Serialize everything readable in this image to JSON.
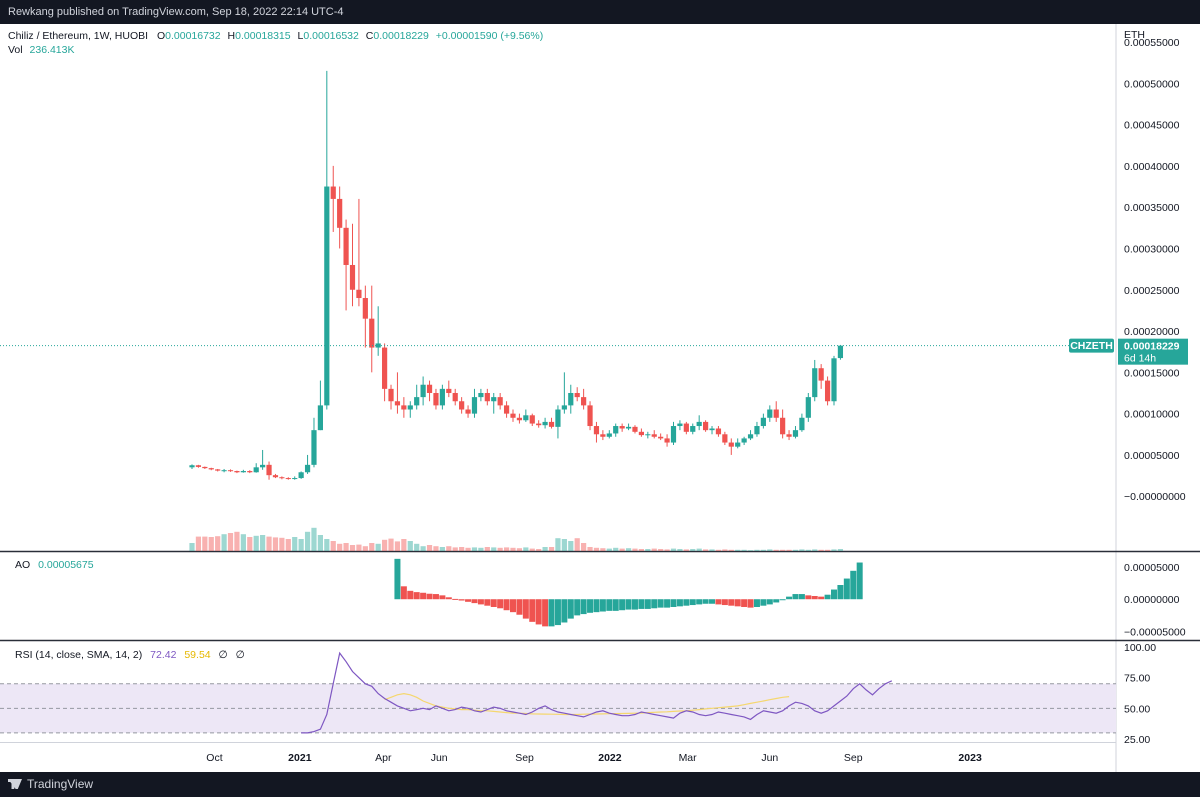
{
  "header": {
    "published_text": "Rewkang published on TradingView.com, Sep 18, 2022 22:14 UTC-4"
  },
  "footer": {
    "brand": "TradingView"
  },
  "legend": {
    "symbol": "Chiliz / Ethereum, 1W, HUOBI",
    "o_label": "O",
    "o_value": "0.00016732",
    "h_label": "H",
    "h_value": "0.00018315",
    "l_label": "L",
    "l_value": "0.00016532",
    "c_label": "C",
    "c_value": "0.00018229",
    "change": "+0.00001590 (+9.56%)",
    "vol_label": "Vol",
    "vol_value": "236.413K"
  },
  "price_scale": {
    "currency": "ETH",
    "tick_labels": [
      "0.00055000",
      "0.00050000",
      "0.00045000",
      "0.00040000",
      "0.00035000",
      "0.00030000",
      "0.00025000",
      "0.00020000",
      "0.00015000",
      "0.00010000",
      "0.00005000",
      "−0.00000000"
    ],
    "last_price_symbol": "CHZETH",
    "last_price_value": "0.00018229",
    "countdown": "6d 14h"
  },
  "ao_panel": {
    "label": "AO",
    "value": "0.00005675",
    "tick_labels": [
      "0.00005000",
      "0.00000000",
      "−0.00005000"
    ]
  },
  "rsi_panel": {
    "label": "RSI (14, close, SMA, 14, 2)",
    "rsi_value": "72.42",
    "sma_value": "59.54",
    "extra1": "∅",
    "extra2": "∅",
    "tick_labels": [
      "100.00",
      "75.00",
      "50.00",
      "25.00"
    ]
  },
  "time_axis": {
    "labels": [
      "Oct",
      "2021",
      "Apr",
      "Jun",
      "Sep",
      "2022",
      "Mar",
      "Jun",
      "Sep",
      "2023"
    ]
  },
  "colors": {
    "up": "#26a69a",
    "down": "#ef5350",
    "rsi": "#7e57c2",
    "rsi_sma": "#f5d76e",
    "band": "#ede7f6"
  },
  "chart_data": [
    {
      "type": "candlestick",
      "title": "Chiliz / Ethereum, 1W, HUOBI",
      "series_unit": "ETH",
      "ylim": [
        -3e-05,
        0.00055
      ],
      "x_start": "2020-09-07",
      "x_step_weeks": 1,
      "ohlc": [
        [
          3.5e-05,
          3.85e-05,
          3.3e-05,
          3.75e-05
        ],
        [
          3.75e-05,
          3.8e-05,
          3.45e-05,
          3.55e-05
        ],
        [
          3.55e-05,
          3.6e-05,
          3.3e-05,
          3.4e-05
        ],
        [
          3.4e-05,
          3.45e-05,
          3.15e-05,
          3.25e-05
        ],
        [
          3.25e-05,
          3.3e-05,
          3e-05,
          3.1e-05
        ],
        [
          3.1e-05,
          3.3e-05,
          2.9e-05,
          3.15e-05
        ],
        [
          3.15e-05,
          3.25e-05,
          2.95e-05,
          3.05e-05
        ],
        [
          3.05e-05,
          3.1e-05,
          2.8e-05,
          2.9e-05
        ],
        [
          2.9e-05,
          3.2e-05,
          2.85e-05,
          3.05e-05
        ],
        [
          3.05e-05,
          3.15e-05,
          2.8e-05,
          2.9e-05
        ],
        [
          2.9e-05,
          4e-05,
          2.85e-05,
          3.5e-05
        ],
        [
          3.5e-05,
          5.6e-05,
          3.2e-05,
          3.8e-05
        ],
        [
          3.8e-05,
          4.2e-05,
          2e-05,
          2.55e-05
        ],
        [
          2.55e-05,
          2.7e-05,
          2.2e-05,
          2.3e-05
        ],
        [
          2.3e-05,
          2.4e-05,
          2.05e-05,
          2.2e-05
        ],
        [
          2.2e-05,
          2.3e-05,
          2e-05,
          2.1e-05
        ],
        [
          2.1e-05,
          2.4e-05,
          2e-05,
          2.2e-05
        ],
        [
          2.2e-05,
          3e-05,
          2.1e-05,
          2.9e-05
        ],
        [
          2.9e-05,
          5e-05,
          2.7e-05,
          3.8e-05
        ],
        [
          3.8e-05,
          9.5e-05,
          3.5e-05,
          8e-05
        ],
        [
          8e-05,
          0.00014,
          8e-05,
          0.00011
        ],
        [
          0.00011,
          0.000515,
          0.000105,
          0.000375
        ],
        [
          0.000375,
          0.0004,
          0.00032,
          0.00036
        ],
        [
          0.00036,
          0.000375,
          0.0003,
          0.000325
        ],
        [
          0.000325,
          0.000335,
          0.000225,
          0.00028
        ],
        [
          0.00028,
          0.00033,
          0.00023,
          0.00025
        ],
        [
          0.00025,
          0.00036,
          0.00023,
          0.00024
        ],
        [
          0.00024,
          0.000255,
          0.00018,
          0.000215
        ],
        [
          0.000215,
          0.000255,
          0.00015,
          0.00018
        ],
        [
          0.00018,
          0.00023,
          0.00017,
          0.000185
        ],
        [
          0.00018,
          0.000185,
          0.000115,
          0.00013
        ],
        [
          0.00013,
          0.000135,
          0.000105,
          0.000115
        ],
        [
          0.000115,
          0.00015,
          0.0001,
          0.00011
        ],
        [
          0.00011,
          0.00012,
          9.5e-05,
          0.000105
        ],
        [
          0.000105,
          0.000115,
          9.5e-05,
          0.00011
        ],
        [
          0.00011,
          0.000135,
          0.000105,
          0.00012
        ],
        [
          0.00012,
          0.000145,
          0.00011,
          0.000135
        ],
        [
          0.000135,
          0.00014,
          0.000115,
          0.000125
        ],
        [
          0.000125,
          0.00013,
          0.000105,
          0.00011
        ],
        [
          0.00011,
          0.000135,
          0.000105,
          0.00013
        ],
        [
          0.00013,
          0.00014,
          0.00012,
          0.000125
        ],
        [
          0.000125,
          0.00013,
          0.00011,
          0.000115
        ],
        [
          0.000115,
          0.00012,
          0.0001,
          0.000105
        ],
        [
          0.000105,
          0.00011,
          9.5e-05,
          0.0001
        ],
        [
          0.0001,
          0.00013,
          9.5e-05,
          0.00012
        ],
        [
          0.00012,
          0.00013,
          0.000115,
          0.000125
        ],
        [
          0.000125,
          0.00013,
          0.00011,
          0.000115
        ],
        [
          0.000115,
          0.000125,
          0.0001,
          0.00012
        ],
        [
          0.00012,
          0.000125,
          0.000105,
          0.00011
        ],
        [
          0.00011,
          0.000115,
          9.5e-05,
          0.0001
        ],
        [
          0.0001,
          0.000105,
          9e-05,
          9.5e-05
        ],
        [
          9.5e-05,
          0.0001,
          8.8e-05,
          9.2e-05
        ],
        [
          9.2e-05,
          0.000105,
          9e-05,
          9.8e-05
        ],
        [
          9.8e-05,
          0.0001,
          8.5e-05,
          8.8e-05
        ],
        [
          8.8e-05,
          9.2e-05,
          8.3e-05,
          8.6e-05
        ],
        [
          8.6e-05,
          9.5e-05,
          8.2e-05,
          9e-05
        ],
        [
          9e-05,
          9.5e-05,
          8.2e-05,
          8.4e-05
        ],
        [
          8.4e-05,
          0.00011,
          7e-05,
          0.000105
        ],
        [
          0.000105,
          0.00015,
          0.0001,
          0.00011
        ],
        [
          0.00011,
          0.000135,
          0.0001,
          0.000125
        ],
        [
          0.000125,
          0.000132,
          0.000115,
          0.00012
        ],
        [
          0.00012,
          0.00013,
          0.000105,
          0.00011
        ],
        [
          0.00011,
          0.000115,
          8e-05,
          8.5e-05
        ],
        [
          8.5e-05,
          9e-05,
          6.5e-05,
          7.5e-05
        ],
        [
          7.5e-05,
          8e-05,
          6.8e-05,
          7.2e-05
        ],
        [
          7.2e-05,
          8e-05,
          7e-05,
          7.6e-05
        ],
        [
          7.6e-05,
          8.8e-05,
          7.2e-05,
          8.5e-05
        ],
        [
          8.5e-05,
          8.8e-05,
          7.8e-05,
          8.2e-05
        ],
        [
          8.2e-05,
          8.8e-05,
          8e-05,
          8.4e-05
        ],
        [
          8.4e-05,
          8.6e-05,
          7.6e-05,
          7.8e-05
        ],
        [
          7.8e-05,
          8.2e-05,
          7.2e-05,
          7.4e-05
        ],
        [
          7.4e-05,
          7.8e-05,
          7e-05,
          7.5e-05
        ],
        [
          7.5e-05,
          8e-05,
          7e-05,
          7.2e-05
        ],
        [
          7.2e-05,
          7.6e-05,
          6.8e-05,
          7e-05
        ],
        [
          7e-05,
          7.5e-05,
          6e-05,
          6.5e-05
        ],
        [
          6.5e-05,
          9e-05,
          6.2e-05,
          8.5e-05
        ],
        [
          8.5e-05,
          9.2e-05,
          8e-05,
          8.8e-05
        ],
        [
          8.8e-05,
          9e-05,
          7.5e-05,
          7.8e-05
        ],
        [
          7.8e-05,
          8.8e-05,
          7.5e-05,
          8.5e-05
        ],
        [
          8.5e-05,
          9.8e-05,
          8e-05,
          9e-05
        ],
        [
          9e-05,
          9.2e-05,
          7.8e-05,
          8e-05
        ],
        [
          8e-05,
          8.5e-05,
          7.5e-05,
          8.2e-05
        ],
        [
          8.2e-05,
          8.5e-05,
          7.2e-05,
          7.5e-05
        ],
        [
          7.5e-05,
          7.8e-05,
          6.2e-05,
          6.5e-05
        ],
        [
          6.5e-05,
          7e-05,
          5e-05,
          6e-05
        ],
        [
          6e-05,
          7e-05,
          5.8e-05,
          6.5e-05
        ],
        [
          6.5e-05,
          7.2e-05,
          6.2e-05,
          7e-05
        ],
        [
          7e-05,
          8e-05,
          6.8e-05,
          7.5e-05
        ],
        [
          7.5e-05,
          9e-05,
          7.2e-05,
          8.5e-05
        ],
        [
          8.5e-05,
          0.0001,
          8.2e-05,
          9.5e-05
        ],
        [
          9.5e-05,
          0.00011,
          9e-05,
          0.000105
        ],
        [
          0.000105,
          0.000115,
          9e-05,
          9.5e-05
        ],
        [
          9.5e-05,
          0.000105,
          7e-05,
          7.5e-05
        ],
        [
          7.5e-05,
          8e-05,
          6.8e-05,
          7.2e-05
        ],
        [
          7.2e-05,
          8.5e-05,
          7e-05,
          8e-05
        ],
        [
          8e-05,
          0.0001,
          7.8e-05,
          9.5e-05
        ],
        [
          9.5e-05,
          0.000125,
          9e-05,
          0.00012
        ],
        [
          0.00012,
          0.000165,
          0.000115,
          0.000155
        ],
        [
          0.000155,
          0.00016,
          0.00013,
          0.00014
        ],
        [
          0.00014,
          0.000145,
          0.00011,
          0.000115
        ],
        [
          0.000115,
          0.00017,
          0.00011,
          0.000167
        ],
        [
          0.0001673,
          0.0001832,
          0.0001653,
          0.0001823
        ]
      ]
    },
    {
      "type": "bar",
      "title": "Vol",
      "value_label": "236.413K",
      "note": "volume in relative units",
      "values": [
        2,
        3.6,
        3.6,
        3.5,
        3.7,
        4.2,
        4.5,
        4.8,
        4.2,
        3.5,
        3.8,
        4.0,
        3.6,
        3.4,
        3.3,
        3.0,
        3.5,
        3.0,
        4.8,
        5.8,
        4.0,
        3.0,
        2.5,
        1.8,
        2.0,
        1.5,
        1.6,
        1.2,
        2.0,
        1.8,
        2.8,
        3.1,
        2.4,
        3.0,
        2.5,
        1.8,
        1.2,
        1.5,
        1.2,
        1.0,
        1.2,
        0.9,
        1.0,
        0.8,
        0.9,
        0.8,
        1.0,
        0.9,
        0.8,
        0.9,
        0.8,
        0.7,
        0.9,
        0.6,
        0.5,
        1.0,
        1.0,
        3.2,
        3.0,
        2.5,
        3.2,
        2.0,
        1.0,
        0.8,
        0.7,
        0.6,
        0.8,
        0.6,
        0.7,
        0.6,
        0.5,
        0.5,
        0.6,
        0.5,
        0.4,
        0.6,
        0.5,
        0.4,
        0.5,
        0.6,
        0.4,
        0.4,
        0.3,
        0.4,
        0.3,
        0.3,
        0.3,
        0.2,
        0.3,
        0.3,
        0.4,
        0.3,
        0.3,
        0.3,
        0.3,
        0.4,
        0.3,
        0.4,
        0.3,
        0.3,
        0.4,
        0.5
      ]
    },
    {
      "type": "bar",
      "title": "AO",
      "ylim": [
        -6e-05,
        7e-05
      ],
      "x_start_index": 32,
      "values": [
        6.25e-05,
        2e-05,
        1.3e-05,
        1.1e-05,
        1e-05,
        8.5e-06,
        8e-06,
        6e-06,
        3e-06,
        5e-07,
        -2e-06,
        -4e-06,
        -6e-06,
        -8e-06,
        -1e-05,
        -1.2e-05,
        -1.4e-05,
        -1.7e-05,
        -2e-05,
        -2.4e-05,
        -3e-05,
        -3.5e-05,
        -3.9e-05,
        -4.2e-05,
        -4.2e-05,
        -4e-05,
        -3.6e-05,
        -3e-05,
        -2.5e-05,
        -2.3e-05,
        -2.1e-05,
        -2e-05,
        -1.9e-05,
        -1.8e-05,
        -1.8e-05,
        -1.7e-05,
        -1.6e-05,
        -1.6e-05,
        -1.5e-05,
        -1.5e-05,
        -1.4e-05,
        -1.3e-05,
        -1.3e-05,
        -1.2e-05,
        -1.1e-05,
        -1e-05,
        -9e-06,
        -8e-06,
        -7e-06,
        -7e-06,
        -8e-06,
        -9e-06,
        -1e-05,
        -1.1e-05,
        -1.2e-05,
        -1.3e-05,
        -1.2e-05,
        -1e-05,
        -8e-06,
        -5e-06,
        -1e-06,
        4e-06,
        8e-06,
        8e-06,
        6e-06,
        5e-06,
        4e-06,
        7e-06,
        1.5e-05,
        2.2e-05,
        3.2e-05,
        4.4e-05,
        5.68e-05
      ]
    },
    {
      "type": "line",
      "title": "RSI (14, close, SMA, 14, 2)",
      "ylim": [
        25,
        100
      ],
      "bands": [
        30,
        50,
        70
      ],
      "series": [
        {
          "name": "RSI",
          "x_start_index": 17,
          "values": [
            30,
            30,
            31,
            33,
            45,
            70,
            95,
            88,
            80,
            75,
            70,
            68,
            62,
            58,
            55,
            52,
            50,
            48,
            49,
            50,
            49,
            52,
            50,
            48,
            49,
            51,
            50,
            48,
            47,
            49,
            51,
            50,
            48,
            47,
            46,
            45,
            47,
            50,
            52,
            49,
            47,
            46,
            45,
            44,
            43,
            45,
            47,
            48,
            46,
            45,
            44,
            44,
            45,
            47,
            46,
            45,
            44,
            43,
            42,
            46,
            48,
            47,
            45,
            44,
            45,
            47,
            46,
            45,
            44,
            43,
            41,
            45,
            48,
            47,
            46,
            48,
            52,
            55,
            54,
            52,
            48,
            46,
            48,
            52,
            56,
            60,
            66,
            70,
            65,
            61,
            66,
            70,
            72.42
          ]
        },
        {
          "name": "SMA",
          "x_start_index": 30,
          "values": [
            57,
            59,
            61,
            62,
            61,
            59,
            56,
            54,
            52,
            51,
            50,
            49.5,
            49,
            49,
            48.5,
            48,
            48,
            47.5,
            47,
            46.5,
            46,
            46,
            45.8,
            45.5,
            45.4,
            45.3,
            45.2,
            45.1,
            45,
            45,
            45,
            45.2,
            45.3,
            45.4,
            45.5,
            45.6,
            45.7,
            45.8,
            45.9,
            46,
            46.2,
            46.5,
            46.8,
            47,
            47.2,
            47.5,
            47.8,
            48,
            48.5,
            49,
            49.5,
            50,
            50.5,
            51,
            51.5,
            52,
            53,
            54,
            55,
            56,
            57,
            58,
            59,
            59.54
          ]
        }
      ]
    }
  ]
}
